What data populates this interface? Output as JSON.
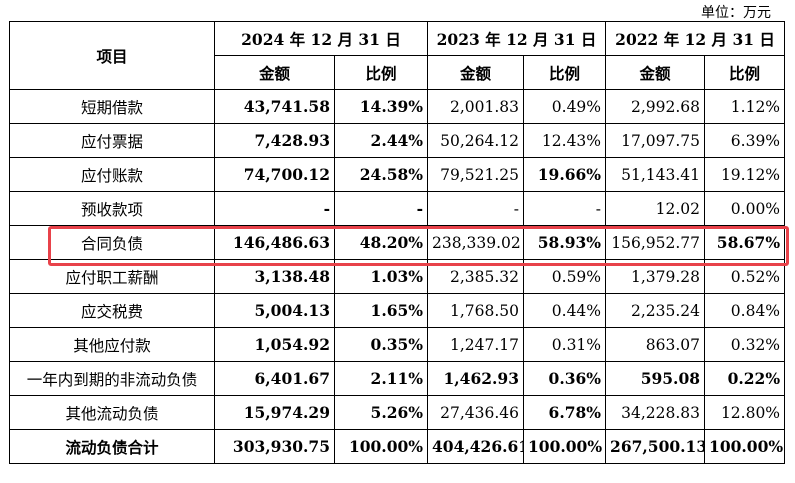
{
  "unit": "单位：万元",
  "headers": {
    "item": "项目",
    "years": [
      "2024 年 12 月 31 日",
      "2023 年 12 月 31 日",
      "2022 年 12 月 31 日"
    ],
    "amount": "金额",
    "ratio": "比例"
  },
  "rows": [
    {
      "label": "短期借款",
      "v": [
        "43,741.58",
        "14.39%",
        "2,001.83",
        "0.49%",
        "2,992.68",
        "1.12%"
      ]
    },
    {
      "label": "应付票据",
      "v": [
        "7,428.93",
        "2.44%",
        "50,264.12",
        "12.43%",
        "17,097.75",
        "6.39%"
      ]
    },
    {
      "label": "应付账款",
      "v": [
        "74,700.12",
        "24.58%",
        "79,521.25",
        "19.66%",
        "51,143.41",
        "19.12%"
      ]
    },
    {
      "label": "预收款项",
      "v": [
        "-",
        "-",
        "-",
        "-",
        "12.02",
        "0.00%"
      ]
    },
    {
      "label": "合同负债",
      "v": [
        "146,486.63",
        "48.20%",
        "238,339.02",
        "58.93%",
        "156,952.77",
        "58.67%"
      ]
    },
    {
      "label": "应付职工薪酬",
      "v": [
        "3,138.48",
        "1.03%",
        "2,385.32",
        "0.59%",
        "1,379.28",
        "0.52%"
      ]
    },
    {
      "label": "应交税费",
      "v": [
        "5,004.13",
        "1.65%",
        "1,768.50",
        "0.44%",
        "2,235.24",
        "0.84%"
      ]
    },
    {
      "label": "其他应付款",
      "v": [
        "1,054.92",
        "0.35%",
        "1,247.17",
        "0.31%",
        "863.07",
        "0.32%"
      ]
    },
    {
      "label": "一年内到期的非流动负债",
      "v": [
        "6,401.67",
        "2.11%",
        "1,462.93",
        "0.36%",
        "595.08",
        "0.22%"
      ]
    },
    {
      "label": "其他流动负债",
      "v": [
        "15,974.29",
        "5.26%",
        "27,436.46",
        "6.78%",
        "34,228.83",
        "12.80%"
      ]
    },
    {
      "label": "流动负债合计",
      "v": [
        "303,930.75",
        "100.00%",
        "404,426.61",
        "100.00%",
        "267,500.13",
        "100.00%"
      ]
    }
  ],
  "highlight_color": "#e8424a"
}
